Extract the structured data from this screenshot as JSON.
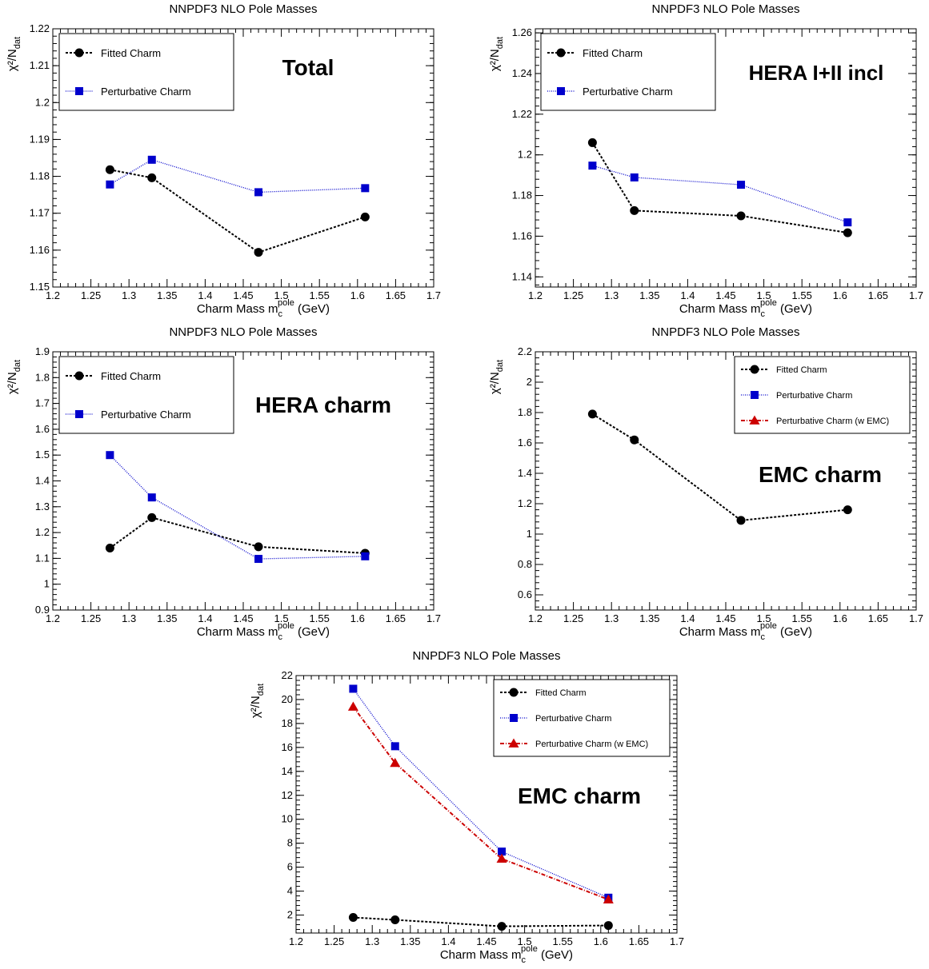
{
  "chart_data": [
    {
      "type": "line",
      "title": "NNPDF3 NLO Pole Masses",
      "annotation": "Total",
      "xlabel": "Charm Mass m_c^pole (GeV)",
      "ylabel": "χ²/N_dat",
      "xlim": [
        1.2,
        1.7
      ],
      "ylim": [
        1.15,
        1.22
      ],
      "yticks": [
        "1.15",
        "1.16",
        "1.17",
        "1.18",
        "1.19",
        "1.2",
        "1.21",
        "1.22"
      ],
      "xticks": [
        "1.2",
        "1.25",
        "1.3",
        "1.35",
        "1.4",
        "1.45",
        "1.5",
        "1.55",
        "1.6",
        "1.65",
        "1.7"
      ],
      "legend_position": "top-left",
      "series": [
        {
          "name": "Fitted Charm",
          "marker": "circle",
          "color": "#000000",
          "line": "dashed",
          "x": [
            1.275,
            1.33,
            1.47,
            1.61
          ],
          "y": [
            1.1818,
            1.1796,
            1.1594,
            1.169
          ]
        },
        {
          "name": "Perturbative Charm",
          "marker": "square",
          "color": "#0000cc",
          "line": "dotted",
          "x": [
            1.275,
            1.33,
            1.47,
            1.61
          ],
          "y": [
            1.1778,
            1.1845,
            1.1757,
            1.1768
          ]
        }
      ]
    },
    {
      "type": "line",
      "title": "NNPDF3 NLO Pole Masses",
      "annotation": "HERA I+II incl",
      "xlabel": "Charm Mass m_c^pole (GeV)",
      "ylabel": "χ²/N_dat",
      "xlim": [
        1.2,
        1.7
      ],
      "ylim": [
        1.135,
        1.262
      ],
      "yticks": [
        "1.14",
        "1.16",
        "1.18",
        "1.2",
        "1.22",
        "1.24",
        "1.26"
      ],
      "xticks": [
        "1.2",
        "1.25",
        "1.3",
        "1.35",
        "1.4",
        "1.45",
        "1.5",
        "1.55",
        "1.6",
        "1.65",
        "1.7"
      ],
      "legend_position": "top-left",
      "series": [
        {
          "name": "Fitted Charm",
          "marker": "circle",
          "color": "#000000",
          "line": "dashed",
          "x": [
            1.275,
            1.33,
            1.47,
            1.61
          ],
          "y": [
            1.206,
            1.1726,
            1.17,
            1.1617
          ]
        },
        {
          "name": "Perturbative Charm",
          "marker": "square",
          "color": "#0000cc",
          "line": "dotted",
          "x": [
            1.275,
            1.33,
            1.47,
            1.61
          ],
          "y": [
            1.1947,
            1.1889,
            1.1853,
            1.1668
          ]
        }
      ]
    },
    {
      "type": "line",
      "title": "NNPDF3 NLO Pole Masses",
      "annotation": "HERA charm",
      "xlabel": "Charm Mass m_c^pole (GeV)",
      "ylabel": "χ²/N_dat",
      "xlim": [
        1.2,
        1.7
      ],
      "ylim": [
        0.9,
        1.9
      ],
      "yticks": [
        "0.9",
        "1",
        "1.1",
        "1.2",
        "1.3",
        "1.4",
        "1.5",
        "1.6",
        "1.7",
        "1.8",
        "1.9"
      ],
      "xticks": [
        "1.2",
        "1.25",
        "1.3",
        "1.35",
        "1.4",
        "1.45",
        "1.5",
        "1.55",
        "1.6",
        "1.65",
        "1.7"
      ],
      "legend_position": "top-left",
      "series": [
        {
          "name": "Fitted Charm",
          "marker": "circle",
          "color": "#000000",
          "line": "dashed",
          "x": [
            1.275,
            1.33,
            1.47,
            1.61
          ],
          "y": [
            1.14,
            1.258,
            1.145,
            1.12
          ]
        },
        {
          "name": "Perturbative Charm",
          "marker": "square",
          "color": "#0000cc",
          "line": "dotted",
          "x": [
            1.275,
            1.33,
            1.47,
            1.61
          ],
          "y": [
            1.5,
            1.336,
            1.098,
            1.108
          ]
        }
      ]
    },
    {
      "type": "line",
      "title": "NNPDF3 NLO Pole Masses",
      "annotation": "EMC charm",
      "xlabel": "Charm Mass m_c^pole (GeV)",
      "ylabel": "χ²/N_dat",
      "xlim": [
        1.2,
        1.7
      ],
      "ylim": [
        0.5,
        2.2
      ],
      "yticks": [
        "0.6",
        "0.8",
        "1",
        "1.2",
        "1.4",
        "1.6",
        "1.8",
        "2",
        "2.2"
      ],
      "xticks": [
        "1.2",
        "1.25",
        "1.3",
        "1.35",
        "1.4",
        "1.45",
        "1.5",
        "1.55",
        "1.6",
        "1.65",
        "1.7"
      ],
      "legend_position": "top-right",
      "series": [
        {
          "name": "Fitted Charm",
          "marker": "circle",
          "color": "#000000",
          "line": "dashed",
          "x": [
            1.275,
            1.33,
            1.47,
            1.61
          ],
          "y": [
            1.79,
            1.62,
            1.09,
            1.16
          ]
        },
        {
          "name": "Perturbative Charm",
          "marker": "square",
          "color": "#0000cc",
          "line": "dotted",
          "x": [],
          "y": []
        },
        {
          "name": "Perturbative Charm (w EMC)",
          "marker": "triangle",
          "color": "#cc0000",
          "line": "dashdot",
          "x": [],
          "y": []
        }
      ]
    },
    {
      "type": "line",
      "title": "NNPDF3 NLO Pole Masses",
      "annotation": "EMC charm",
      "xlabel": "Charm Mass m_c^pole (GeV)",
      "ylabel": "χ²/N_dat",
      "xlim": [
        1.2,
        1.7
      ],
      "ylim": [
        0.5,
        22
      ],
      "yticks": [
        "2",
        "4",
        "6",
        "8",
        "10",
        "12",
        "14",
        "16",
        "18",
        "20",
        "22"
      ],
      "xticks": [
        "1.2",
        "1.25",
        "1.3",
        "1.35",
        "1.4",
        "1.45",
        "1.5",
        "1.55",
        "1.6",
        "1.65",
        "1.7"
      ],
      "legend_position": "top-right",
      "series": [
        {
          "name": "Fitted Charm",
          "marker": "circle",
          "color": "#000000",
          "line": "dashed",
          "x": [
            1.275,
            1.33,
            1.47,
            1.61
          ],
          "y": [
            1.8,
            1.6,
            1.06,
            1.13
          ]
        },
        {
          "name": "Perturbative Charm",
          "marker": "square",
          "color": "#0000cc",
          "line": "dotted",
          "x": [
            1.275,
            1.33,
            1.47,
            1.61
          ],
          "y": [
            20.9,
            16.1,
            7.3,
            3.45
          ]
        },
        {
          "name": "Perturbative Charm (w EMC)",
          "marker": "triangle",
          "color": "#cc0000",
          "line": "dashdot",
          "x": [
            1.275,
            1.33,
            1.47,
            1.61
          ],
          "y": [
            19.4,
            14.7,
            6.7,
            3.3
          ]
        }
      ]
    }
  ]
}
